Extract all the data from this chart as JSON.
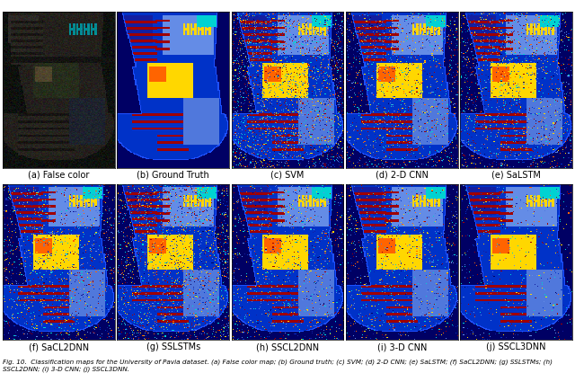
{
  "labels_row1": [
    "(a) False color",
    "(b) Ground Truth",
    "(c) SVM",
    "(d) 2-D CNN",
    "(e) SaLSTM"
  ],
  "labels_row2": [
    "(f) SaCL2DNN",
    "(g) SSLSTMs",
    "(h) SSCL2DNN",
    "(i) 3-D CNN",
    "(j) SSCL3DNN"
  ],
  "label_fontsize": 7,
  "fig_caption": "Fig. 10.  Classification maps for the University of Pavia dataset. (a) False color map; (b) Ground truth; (c) SVM; (d) 2-D CNN; (e) SaLSTM; (f) SaCL2DNN; (g) SSLSTMs; (h) SSCL2DNN; (i) 3-D CNN; (j) SSCL3DNN.",
  "colors": {
    "bg": [
      0,
      0,
      180
    ],
    "dark_blue": [
      0,
      0,
      139
    ],
    "navy": [
      0,
      0,
      100
    ],
    "blue": [
      0,
      50,
      220
    ],
    "light_blue": [
      65,
      105,
      225
    ],
    "cyan": [
      0,
      200,
      200
    ],
    "red": [
      180,
      0,
      0
    ],
    "dark_red": [
      139,
      0,
      0
    ],
    "yellow": [
      255,
      215,
      0
    ],
    "orange": [
      255,
      100,
      0
    ],
    "green": [
      0,
      180,
      0
    ],
    "light_cyan": [
      100,
      220,
      220
    ],
    "white": [
      255,
      255,
      255
    ],
    "bright_blue": [
      30,
      30,
      220
    ]
  }
}
